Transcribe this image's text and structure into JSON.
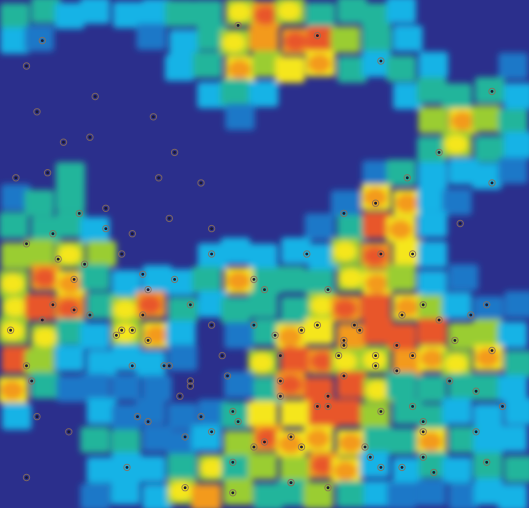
{
  "chart_data": {
    "type": "heatmap",
    "title": "",
    "xlabel": "",
    "ylabel": "",
    "colormap": [
      "#2b2f8c",
      "#1f78c8",
      "#17b3e6",
      "#20b59b",
      "#9acd32",
      "#f5e61c",
      "#f39a1e",
      "#e8562a"
    ],
    "value_range": [
      0,
      1
    ],
    "grid": false,
    "legend": "none",
    "grid_rows": 19,
    "grid_cols": 19,
    "sample_x": [
      0.72,
      0.93,
      0.08,
      0.6,
      0.45,
      0.83,
      0.77,
      0.71,
      0.65,
      0.93,
      0.87,
      0.78,
      0.58,
      0.4,
      0.32,
      0.2,
      0.15,
      0.05,
      0.11,
      0.23,
      0.33,
      0.48,
      0.62,
      0.83,
      0.93,
      0.95,
      0.92,
      0.82,
      0.76,
      0.7,
      0.55,
      0.44,
      0.35,
      0.24,
      0.05,
      0.13,
      0.28,
      0.38,
      0.53,
      0.55,
      0.72,
      0.85,
      0.92,
      0.65,
      0.36,
      0.27,
      0.42,
      0.52,
      0.71,
      0.8,
      0.53,
      0.65,
      0.32,
      0.43,
      0.25,
      0.34,
      0.57,
      0.69,
      0.48,
      0.14,
      0.48,
      0.8,
      0.75,
      0.35,
      0.44,
      0.62,
      0.23,
      0.26,
      0.53,
      0.65,
      0.64,
      0.6,
      0.67,
      0.78,
      0.86,
      0.72,
      0.62,
      0.75,
      0.8,
      0.9,
      0.9,
      0.76,
      0.89,
      0.68,
      0.71,
      0.78,
      0.5,
      0.4,
      0.38,
      0.33,
      0.29,
      0.17,
      0.18,
      0.12,
      0.03,
      0.02,
      0.08,
      0.05,
      0.1,
      0.06,
      0.25,
      0.4,
      0.6,
      0.31,
      0.36,
      0.28,
      0.27,
      0.57,
      0.05,
      0.07,
      0.09,
      0.1,
      0.16,
      0.2,
      0.14,
      0.17,
      0.22,
      0.28,
      0.36,
      0.44,
      0.55,
      0.62,
      0.72,
      0.8,
      0.45,
      0.4,
      0.5,
      0.07,
      0.25,
      0.3
    ],
    "sample_y": [
      0.12,
      0.18,
      0.08,
      0.07,
      0.05,
      0.3,
      0.35,
      0.4,
      0.42,
      0.36,
      0.44,
      0.5,
      0.5,
      0.45,
      0.43,
      0.41,
      0.42,
      0.48,
      0.51,
      0.5,
      0.55,
      0.55,
      0.57,
      0.63,
      0.69,
      0.8,
      0.91,
      0.93,
      0.92,
      0.9,
      0.95,
      0.97,
      0.96,
      0.92,
      0.94,
      0.85,
      0.83,
      0.82,
      0.78,
      0.86,
      0.81,
      0.75,
      0.6,
      0.67,
      0.6,
      0.62,
      0.7,
      0.66,
      0.7,
      0.6,
      0.75,
      0.74,
      0.72,
      0.74,
      0.72,
      0.78,
      0.88,
      0.88,
      0.88,
      0.61,
      0.64,
      0.83,
      0.68,
      0.86,
      0.91,
      0.78,
      0.65,
      0.82,
      0.7,
      0.68,
      0.7,
      0.8,
      0.64,
      0.8,
      0.67,
      0.5,
      0.8,
      0.73,
      0.85,
      0.77,
      0.85,
      0.62,
      0.62,
      0.65,
      0.72,
      0.7,
      0.57,
      0.5,
      0.36,
      0.3,
      0.23,
      0.27,
      0.19,
      0.28,
      0.35,
      0.65,
      0.63,
      0.72,
      0.6,
      0.75,
      0.65,
      0.64,
      0.64,
      0.72,
      0.75,
      0.57,
      0.54,
      0.65,
      0.13,
      0.22,
      0.34,
      0.46,
      0.52,
      0.45,
      0.55,
      0.62,
      0.66,
      0.67,
      0.76,
      0.81,
      0.95,
      0.96,
      0.92,
      0.9,
      0.83,
      0.85,
      0.87,
      0.82,
      0.46,
      0.35
    ]
  }
}
